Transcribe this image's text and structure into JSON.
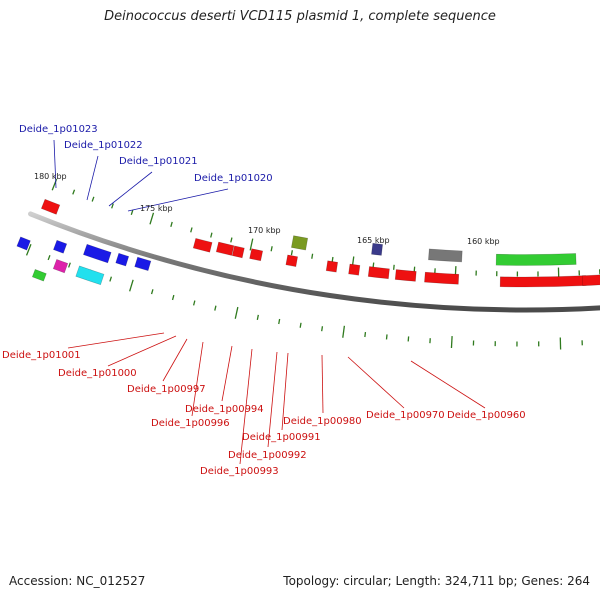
{
  "title": "Deinococcus deserti VCD115 plasmid 1, complete sequence",
  "footer": {
    "accession": "Accession: NC_012527",
    "summary": "Topology: circular; Length: 324,711 bp; Genes: 264"
  },
  "colors": {
    "forward_label": "#1a1aa8",
    "reverse_label": "#cc1111",
    "backbone": "#8c8c8c",
    "tick": "#2f7a1e",
    "gene_red": "#ee1111",
    "gene_blue": "#1a1ae6",
    "gene_cyan": "#22e0ee",
    "gene_magenta": "#dd22aa",
    "gene_green": "#33cc33",
    "gene_olive": "#7a9a22",
    "gene_navy": "#3a3a8a",
    "gene_gray": "#777777"
  },
  "scale_labels": [
    "180 kbp",
    "175 kbp",
    "170 kbp",
    "165 kbp",
    "160 kbp"
  ],
  "forward_labels": [
    "Deide_1p01023",
    "Deide_1p01022",
    "Deide_1p01021",
    "Deide_1p01020"
  ],
  "reverse_labels": [
    "Deide_1p01001",
    "Deide_1p01000",
    "Deide_1p00997",
    "Deide_1p00996",
    "Deide_1p00994",
    "Deide_1p00993",
    "Deide_1p00992",
    "Deide_1p00991",
    "Deide_1p00980",
    "Deide_1p00970",
    "Deide_1p00960"
  ]
}
